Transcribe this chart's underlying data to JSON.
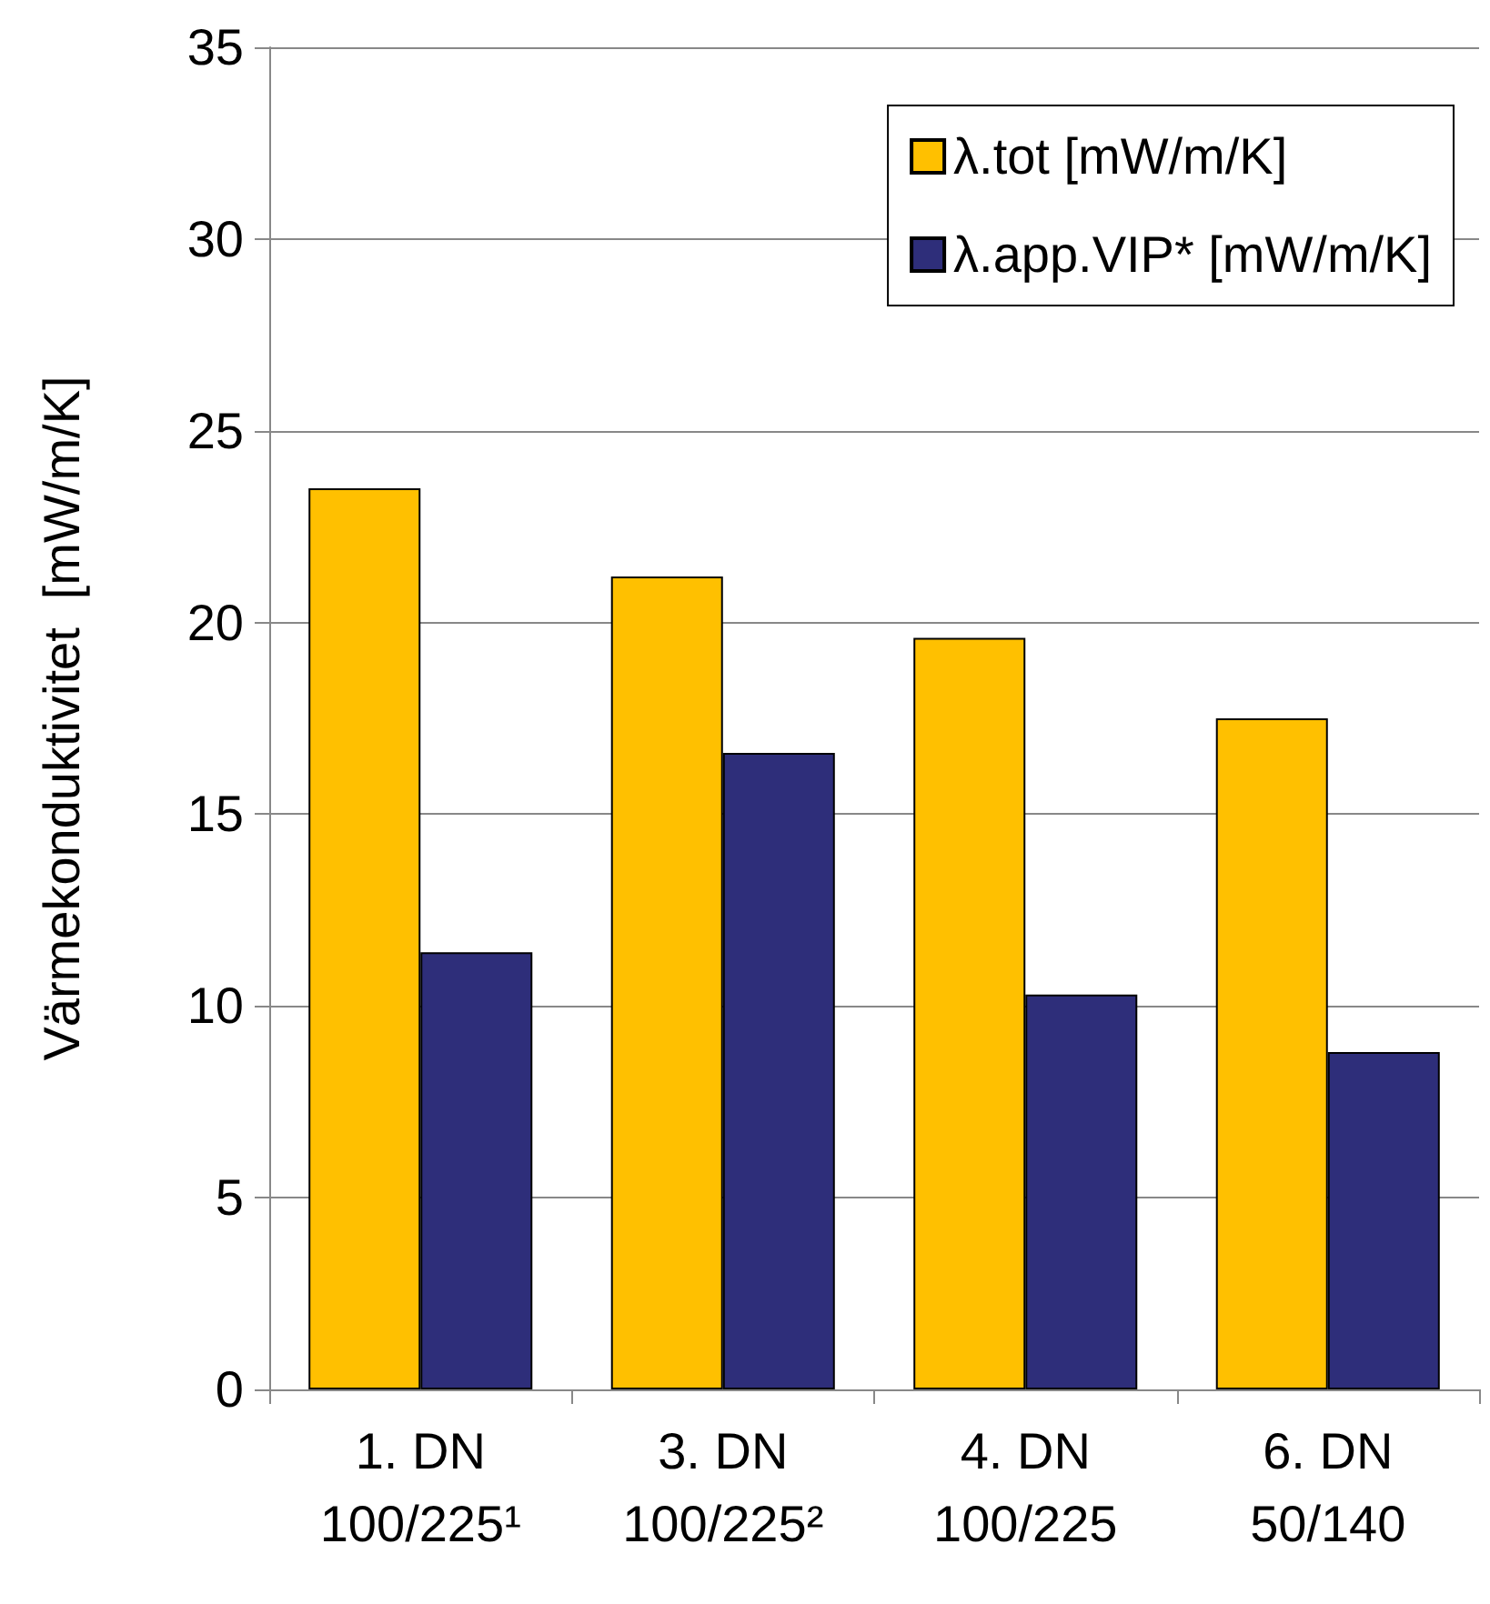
{
  "chart_data": {
    "type": "bar",
    "ylabel": "Värmekonduktivitet  [mW/m/K]",
    "categories": [
      "1. DN\n100/225¹",
      "3. DN\n100/225²",
      "4. DN\n100/225",
      "6. DN\n50/140"
    ],
    "series": [
      {
        "name": "λ.tot [mW/m/K]",
        "color": "#ffc000",
        "values": [
          23.5,
          21.2,
          19.6,
          17.5
        ]
      },
      {
        "name": "λ.app.VIP* [mW/m/K]",
        "color": "#2e2e7a",
        "values": [
          11.4,
          16.6,
          10.3,
          8.8
        ]
      }
    ],
    "ylim": [
      0,
      35
    ],
    "yticks": [
      0,
      5,
      10,
      15,
      20,
      25,
      30,
      35
    ],
    "grid": "y",
    "legend": "top right"
  }
}
